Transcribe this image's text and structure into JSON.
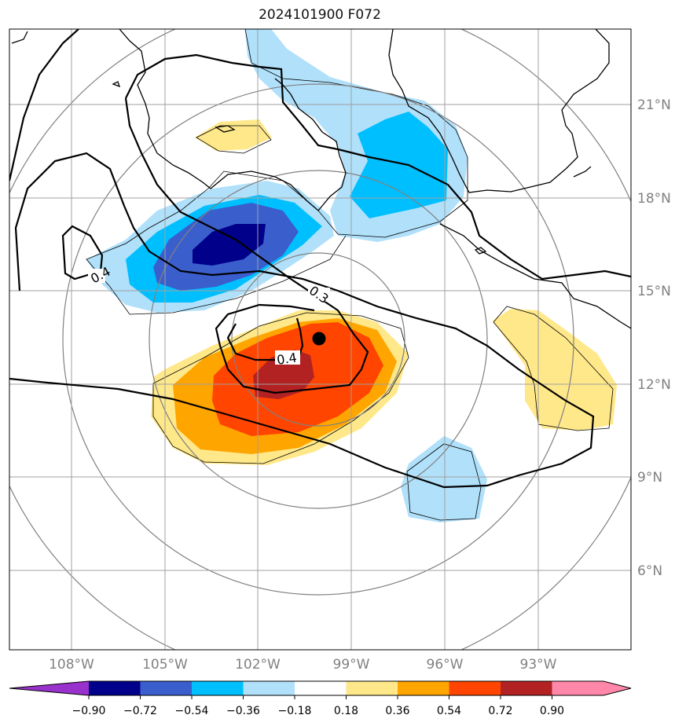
{
  "title": "2024101900 F072",
  "map": {
    "lon_labels": [
      "108°W",
      "105°W",
      "102°W",
      "99°W",
      "96°W",
      "93°W"
    ],
    "lat_labels": [
      "21°N",
      "18°N",
      "15°N",
      "12°N",
      "9°N",
      "6°N"
    ],
    "contour_labels": [
      "0.4",
      "0.3",
      "0.4"
    ],
    "center_marker": {
      "lon": -100.0,
      "lat": 13.5
    },
    "colors": {
      "coast": "#000000",
      "grid": "#a0a0a0",
      "range_rings": "#808080",
      "contour": "#000000",
      "marker": "#000000"
    }
  },
  "colorbar": {
    "labels": [
      "−0.90",
      "−0.72",
      "−0.54",
      "−0.36",
      "−0.18",
      "0.18",
      "0.36",
      "0.54",
      "0.72",
      "0.90"
    ],
    "colors": [
      "#9932cc",
      "#00008b",
      "#3a5fcd",
      "#00bfff",
      "#b0e0fa",
      "#ffffff",
      "#ffe88a",
      "#ffa500",
      "#ff4500",
      "#b22222",
      "#ff88aa",
      "#ff88aa"
    ]
  }
}
